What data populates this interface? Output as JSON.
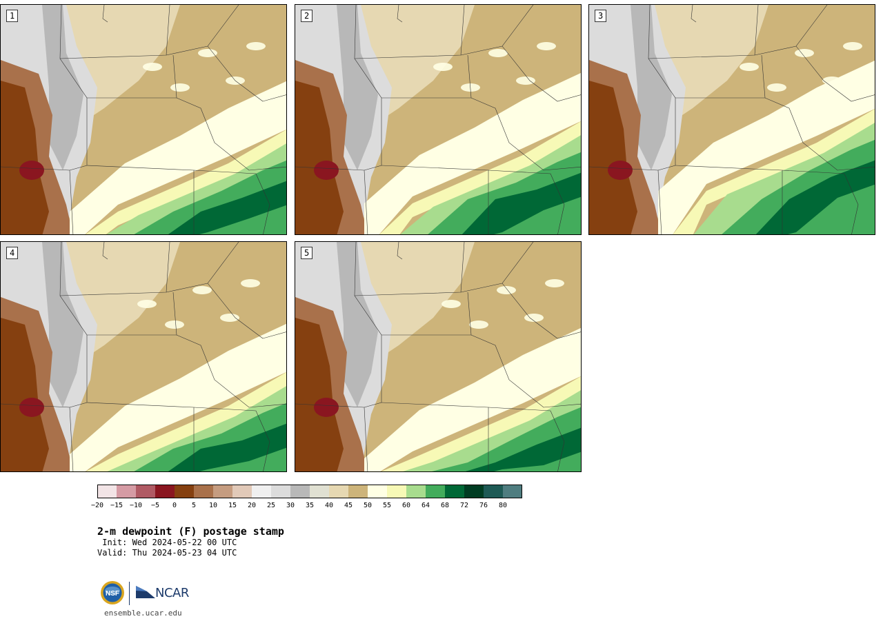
{
  "panels": [
    {
      "label": "1",
      "variant": 0
    },
    {
      "label": "2",
      "variant": 1
    },
    {
      "label": "3",
      "variant": 2
    },
    {
      "label": "4",
      "variant": 3
    },
    {
      "label": "5",
      "variant": 4
    }
  ],
  "colorbar": {
    "colors": [
      "#f2e4e6",
      "#d59ba4",
      "#b05a64",
      "#8a1620",
      "#854010",
      "#a9714b",
      "#c59c80",
      "#e1c9b8",
      "#f0f0f0",
      "#dcdcdc",
      "#b8b8b8",
      "#e0e0d2",
      "#e6d8b2",
      "#cdb47a",
      "#ffffe4",
      "#f7f9b6",
      "#a8dc8e",
      "#43ac5c",
      "#006836",
      "#003c22",
      "#1e5a55",
      "#4f7d80"
    ],
    "ticks": [
      "−20",
      "−15",
      "−10",
      "−5",
      "0",
      "5",
      "10",
      "15",
      "20",
      "25",
      "30",
      "35",
      "40",
      "45",
      "50",
      "55",
      "60",
      "64",
      "68",
      "72",
      "76",
      "80"
    ]
  },
  "title": "2-m dewpoint (F) postage stamp",
  "init_line": " Init: Wed 2024-05-22 00 UTC",
  "valid_line": "Valid: Thu 2024-05-23 04 UTC",
  "logos": {
    "nsf": "NSF",
    "ncar": "NCAR"
  },
  "url": "ensemble.ucar.edu"
}
